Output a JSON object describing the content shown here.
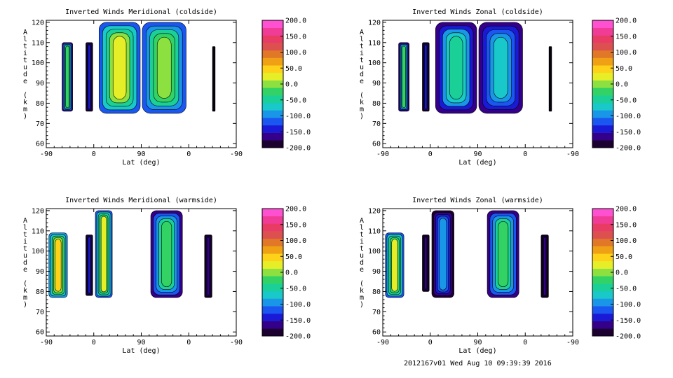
{
  "footer": "2012167v01 Wed Aug 10 09:39:39 2016",
  "colorbar": {
    "ticks": [
      "200.0",
      "150.0",
      "100.0",
      "50.0",
      "0.0",
      "-50.0",
      "-100.0",
      "-150.0",
      "-200.0"
    ],
    "colors": [
      "#1c0030",
      "#34008a",
      "#1a1ad6",
      "#1a56f0",
      "#1a96e8",
      "#19c8c8",
      "#1ad096",
      "#32d264",
      "#8ce040",
      "#e6ee28",
      "#ffd21a",
      "#f0a014",
      "#e07828",
      "#dc5050",
      "#e83c64",
      "#f03c96",
      "#ff50d2"
    ]
  },
  "chart_data": [
    {
      "type": "heatmap",
      "title": "Inverted Winds Meridional (coldside)",
      "xlabel": "Lat (deg)",
      "ylabel": "Altitude (km)",
      "x_ticks": [
        "-90",
        "0",
        "90",
        "0",
        "-90"
      ],
      "y_ticks": [
        "60",
        "70",
        "80",
        "90",
        "100",
        "110",
        "120"
      ],
      "ylim": [
        58,
        121
      ],
      "value_range": [
        -200,
        200
      ],
      "blobs": [
        {
          "x": [
            -60,
            -40
          ],
          "y": [
            76,
            110
          ],
          "v": -20
        },
        {
          "x": [
            -15,
            -2
          ],
          "y": [
            76,
            110
          ],
          "v": -130
        },
        {
          "x": [
            10,
            88
          ],
          "y": [
            75,
            120
          ],
          "v": 30
        },
        {
          "x": [
            92,
            175
          ],
          "y": [
            75,
            120
          ],
          "v": 10
        },
        {
          "x": [
            225,
            230
          ],
          "y": [
            76,
            108
          ],
          "v": -190
        }
      ]
    },
    {
      "type": "heatmap",
      "title": "Inverted Winds Zonal (coldside)",
      "xlabel": "Lat (deg)",
      "ylabel": "Altitude (km)",
      "x_ticks": [
        "-90",
        "0",
        "90",
        "0",
        "-90"
      ],
      "y_ticks": [
        "60",
        "70",
        "80",
        "90",
        "100",
        "110",
        "120"
      ],
      "ylim": [
        58,
        121
      ],
      "value_range": [
        -200,
        200
      ],
      "blobs": [
        {
          "x": [
            -60,
            -40
          ],
          "y": [
            76,
            110
          ],
          "v": -30
        },
        {
          "x": [
            -15,
            -2
          ],
          "y": [
            76,
            110
          ],
          "v": -140
        },
        {
          "x": [
            10,
            88
          ],
          "y": [
            75,
            120
          ],
          "v": -40
        },
        {
          "x": [
            92,
            175
          ],
          "y": [
            75,
            120
          ],
          "v": -70
        },
        {
          "x": [
            225,
            230
          ],
          "y": [
            76,
            108
          ],
          "v": -190
        }
      ]
    },
    {
      "type": "heatmap",
      "title": "Inverted Winds Meridional (warmside)",
      "xlabel": "Lat (deg)",
      "ylabel": "Altitude (km)",
      "x_ticks": [
        "-90",
        "0",
        "90",
        "0",
        "-90"
      ],
      "y_ticks": [
        "60",
        "70",
        "80",
        "90",
        "100",
        "110",
        "120"
      ],
      "ylim": [
        58,
        121
      ],
      "value_range": [
        -200,
        200
      ],
      "blobs": [
        {
          "x": [
            -85,
            -50
          ],
          "y": [
            77,
            109
          ],
          "v": 40
        },
        {
          "x": [
            -15,
            -2
          ],
          "y": [
            78,
            108
          ],
          "v": -130
        },
        {
          "x": [
            3,
            35
          ],
          "y": [
            77,
            120
          ],
          "v": 20
        },
        {
          "x": [
            108,
            168
          ],
          "y": [
            77,
            120
          ],
          "v": -20
        },
        {
          "x": [
            210,
            224
          ],
          "y": [
            77,
            108
          ],
          "v": -160
        }
      ]
    },
    {
      "type": "heatmap",
      "title": "Inverted Winds Zonal (warmside)",
      "xlabel": "Lat (deg)",
      "ylabel": "Altitude (km)",
      "x_ticks": [
        "-90",
        "0",
        "90",
        "0",
        "-90"
      ],
      "y_ticks": [
        "60",
        "70",
        "80",
        "90",
        "100",
        "110",
        "120"
      ],
      "ylim": [
        58,
        121
      ],
      "value_range": [
        -200,
        200
      ],
      "blobs": [
        {
          "x": [
            -85,
            -50
          ],
          "y": [
            77,
            109
          ],
          "v": 20
        },
        {
          "x": [
            -15,
            -2
          ],
          "y": [
            80,
            108
          ],
          "v": -160
        },
        {
          "x": [
            3,
            45
          ],
          "y": [
            77,
            120
          ],
          "v": -100
        },
        {
          "x": [
            108,
            168
          ],
          "y": [
            77,
            120
          ],
          "v": -20
        },
        {
          "x": [
            210,
            224
          ],
          "y": [
            77,
            108
          ],
          "v": -170
        }
      ]
    }
  ]
}
